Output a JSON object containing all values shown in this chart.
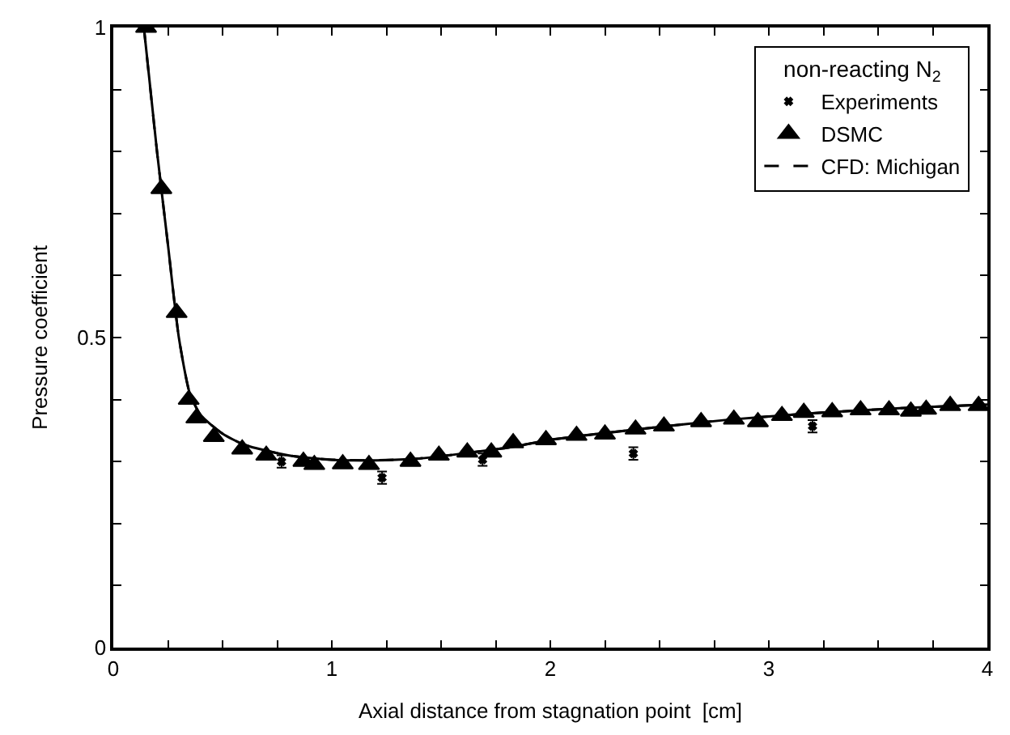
{
  "chart_data": {
    "type": "scatter",
    "xlabel": "Axial distance from stagnation point  [cm]",
    "ylabel": "Pressure coefficient",
    "legend_title": "non-reacting N$_{2}$",
    "xlim": [
      0,
      4
    ],
    "xticks": [
      0,
      {
        "value": 0.25,
        "label": null
      },
      {
        "value": 0.5,
        "label": null
      },
      {
        "value": 0.75,
        "label": null
      },
      1,
      {
        "value": 1.25,
        "label": null
      },
      {
        "value": 1.5,
        "label": null
      },
      {
        "value": 1.75,
        "label": null
      },
      2,
      {
        "value": 2.25,
        "label": null
      },
      {
        "value": 2.5,
        "label": null
      },
      {
        "value": 2.75,
        "label": null
      },
      3,
      {
        "value": 3.25,
        "label": null
      },
      {
        "value": 3.5,
        "label": null
      },
      {
        "value": 3.75,
        "label": null
      },
      4
    ],
    "ylim": [
      0,
      1
    ],
    "yticks": [
      0,
      {
        "value": 0.1,
        "label": null
      },
      {
        "value": 0.2,
        "label": null
      },
      {
        "value": 0.3,
        "label": null
      },
      {
        "value": 0.4,
        "label": null
      },
      0.5,
      {
        "value": 0.6,
        "label": null
      },
      {
        "value": 0.7,
        "label": null
      },
      {
        "value": 0.8,
        "label": null
      },
      {
        "value": 0.9,
        "label": null
      },
      1
    ],
    "legend": "top right",
    "series": [
      {
        "name": "Experiments",
        "marker": "cross",
        "color": "#000000",
        "x": [
          0.77,
          1.23,
          1.69,
          2.38,
          3.2
        ],
        "values": [
          0.3,
          0.274,
          0.303,
          0.313,
          0.357
        ],
        "errors": [
          0.01,
          0.01,
          0.01,
          0.01,
          0.01
        ]
      },
      {
        "name": "DSMC",
        "marker": "triangle",
        "color": "#000000",
        "x": [
          0.15,
          0.22,
          0.29,
          0.345,
          0.38,
          0.46,
          0.59,
          0.7,
          0.87,
          0.92,
          1.05,
          1.17,
          1.36,
          1.49,
          1.62,
          1.73,
          1.83,
          1.98,
          2.12,
          2.25,
          2.39,
          2.52,
          2.69,
          2.84,
          2.95,
          3.06,
          3.16,
          3.29,
          3.42,
          3.55,
          3.65,
          3.72,
          3.83,
          3.96
        ],
        "values": [
          1.0,
          0.74,
          0.54,
          0.4,
          0.37,
          0.34,
          0.32,
          0.31,
          0.3,
          0.295,
          0.296,
          0.295,
          0.3,
          0.31,
          0.315,
          0.315,
          0.33,
          0.335,
          0.342,
          0.344,
          0.352,
          0.357,
          0.364,
          0.368,
          0.364,
          0.374,
          0.379,
          0.38,
          0.383,
          0.383,
          0.381,
          0.384,
          0.39,
          0.39
        ]
      },
      {
        "name": "CFD: Michigan",
        "type": "line",
        "line_style": "dashed",
        "marker": "none",
        "color": "#000000",
        "x": [
          0.14,
          0.2,
          0.25,
          0.3,
          0.35,
          0.4,
          0.5,
          0.6,
          0.8,
          1.0,
          1.2,
          1.4,
          1.6,
          1.8,
          2.0,
          2.4,
          2.8,
          3.2,
          3.6,
          4.0
        ],
        "values": [
          1.0,
          0.8,
          0.65,
          0.5,
          0.41,
          0.375,
          0.345,
          0.327,
          0.31,
          0.303,
          0.302,
          0.305,
          0.313,
          0.322,
          0.335,
          0.352,
          0.367,
          0.378,
          0.386,
          0.392
        ]
      },
      {
        "type": "line",
        "line_style": "solid",
        "marker": "none",
        "color": "#000000",
        "x": [
          0.14,
          0.2,
          0.25,
          0.3,
          0.35,
          0.4,
          0.5,
          0.6,
          0.8,
          1.0,
          1.2,
          1.4,
          1.6,
          1.8,
          2.0,
          2.4,
          2.8,
          3.2,
          3.6,
          4.0
        ],
        "values": [
          1.0,
          0.8,
          0.65,
          0.5,
          0.41,
          0.375,
          0.345,
          0.327,
          0.31,
          0.303,
          0.302,
          0.305,
          0.313,
          0.322,
          0.335,
          0.352,
          0.367,
          0.378,
          0.386,
          0.392
        ]
      }
    ]
  }
}
